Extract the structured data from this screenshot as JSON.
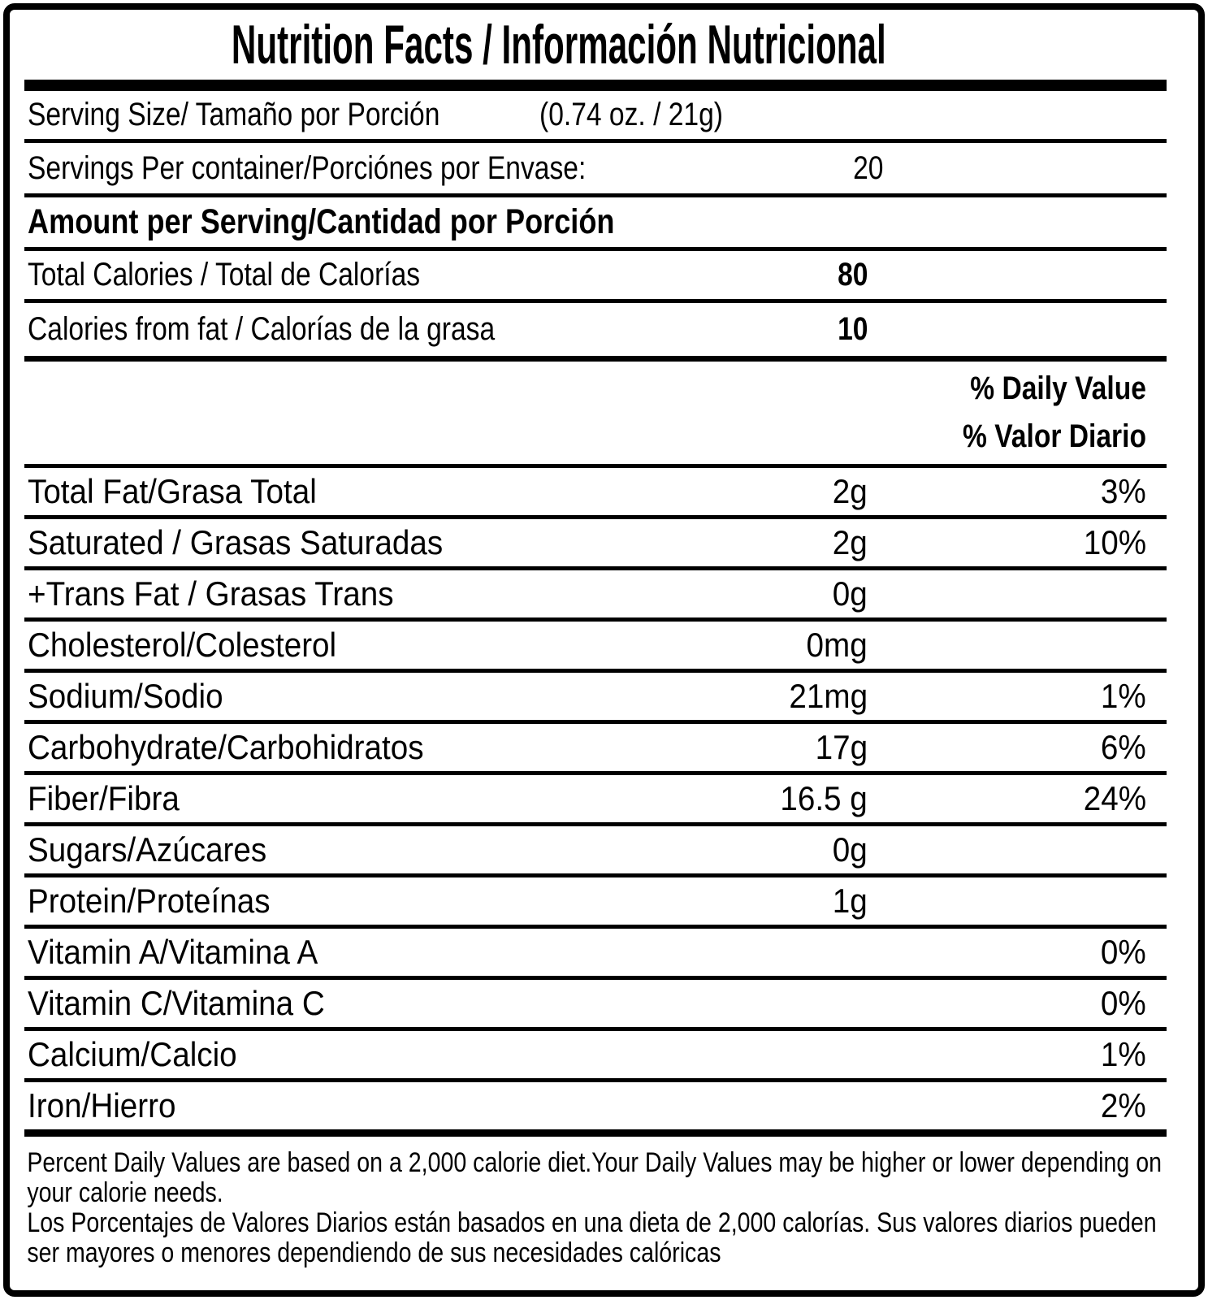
{
  "title": "Nutrition Facts / Información Nutricional",
  "serving": {
    "size_label": "Serving Size/ Tamaño por Porción",
    "size_value": "(0.74 oz. / 21g)",
    "per_container_label": "Servings Per container/Porciónes por Envase:",
    "per_container_value": "20"
  },
  "amount_header": "Amount per Serving/Cantidad por Porción",
  "calories": [
    {
      "label": "Total Calories / Total de Calorías",
      "value": "80"
    },
    {
      "label": "Calories from fat / Calorías de la grasa",
      "value": "10"
    }
  ],
  "daily_value_header": {
    "en": "% Daily Value",
    "es": "% Valor Diario"
  },
  "nutrients": [
    {
      "label": "Total Fat/Grasa Total",
      "amount": "2g",
      "dv": "3%"
    },
    {
      "label": "Saturated / Grasas Saturadas",
      "amount": "2g",
      "dv": "10%"
    },
    {
      "label": "+Trans Fat / Grasas Trans",
      "amount": "0g",
      "dv": ""
    },
    {
      "label": "Cholesterol/Colesterol",
      "amount": "0mg",
      "dv": ""
    },
    {
      "label": "Sodium/Sodio",
      "amount": "21mg",
      "dv": "1%"
    },
    {
      "label": "Carbohydrate/Carbohidratos",
      "amount": "17g",
      "dv": "6%"
    },
    {
      "label": "Fiber/Fibra",
      "amount": "16.5 g",
      "dv": "24%"
    },
    {
      "label": "Sugars/Azúcares",
      "amount": "0g",
      "dv": ""
    },
    {
      "label": "Protein/Proteínas",
      "amount": "1g",
      "dv": ""
    },
    {
      "label": "Vitamin A/Vitamina A",
      "amount": "",
      "dv": "0%"
    },
    {
      "label": "Vitamin C/Vitamina C",
      "amount": "",
      "dv": "0%"
    },
    {
      "label": "Calcium/Calcio",
      "amount": "",
      "dv": "1%"
    },
    {
      "label": "Iron/Hierro",
      "amount": "",
      "dv": "2%"
    }
  ],
  "footnote": {
    "en": "Percent Daily Values are based on a 2,000 calorie diet.Your Daily Values may be higher or lower depending on your calorie needs.",
    "es": "Los Porcentajes de Valores Diarios están basados en una dieta de 2,000 calorías. Sus valores diarios pueden ser mayores o menores dependiendo de sus necesidades calóricas"
  },
  "colors": {
    "ink": "#000000",
    "background": "#ffffff"
  }
}
